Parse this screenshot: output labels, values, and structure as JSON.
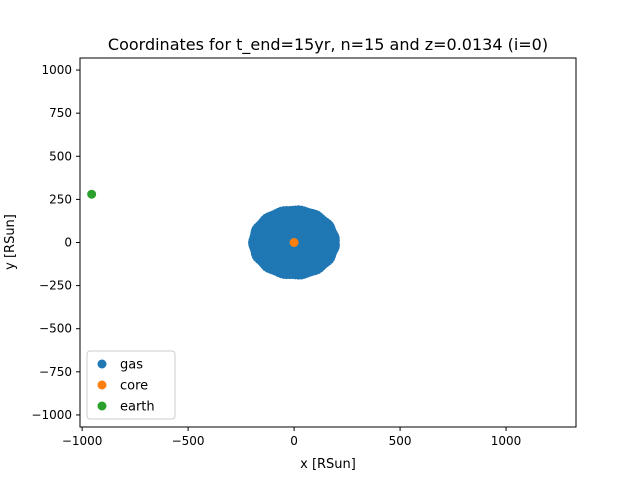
{
  "chart_data": {
    "type": "scatter",
    "title": "Coordinates for t_end=15yr, n=15 and z=0.0134 (i=0)",
    "xlabel": "x [RSun]",
    "ylabel": "y [RSun]",
    "xlim": [
      -1010,
      1330
    ],
    "ylim": [
      -1070,
      1070
    ],
    "xticks": [
      -1000,
      -500,
      0,
      500,
      1000
    ],
    "xtick_labels": [
      "−1000",
      "−500",
      "0",
      "500",
      "1000"
    ],
    "yticks": [
      -1000,
      -750,
      -500,
      -250,
      0,
      250,
      500,
      750,
      1000
    ],
    "ytick_labels": [
      "−1000",
      "−750",
      "−500",
      "−250",
      "0",
      "250",
      "500",
      "750",
      "1000"
    ],
    "grid": false,
    "legend_position": "lower-left",
    "series": [
      {
        "name": "gas",
        "color": "#1f77b4",
        "shape": "dense-cloud",
        "center": [
          0,
          0
        ],
        "radius_x": 215,
        "radius_y": 215
      },
      {
        "name": "core",
        "color": "#ff7f0e",
        "points": [
          [
            0,
            0
          ]
        ]
      },
      {
        "name": "earth",
        "color": "#2ca02c",
        "points": [
          [
            -955,
            280
          ]
        ]
      }
    ]
  }
}
